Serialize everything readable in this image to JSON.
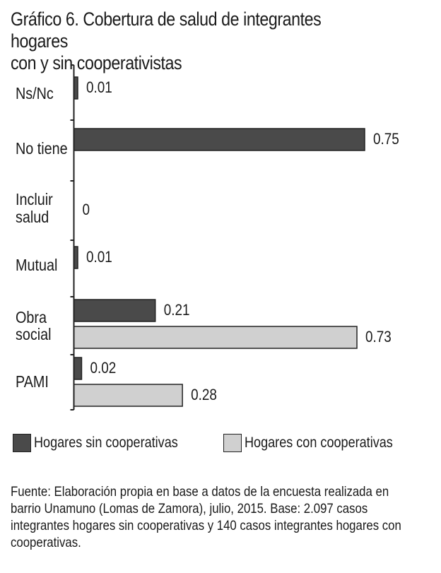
{
  "title_lines": [
    "Gráfico 6. Cobertura de salud de integrantes hogares",
    "con y sin cooperativistas"
  ],
  "chart_data": {
    "type": "bar",
    "orientation": "horizontal",
    "title": "Gráfico 6. Cobertura de salud de integrantes hogares con y sin cooperativistas",
    "categories": [
      [
        "Ns/Nc"
      ],
      [
        "No tiene"
      ],
      [
        "Incluir",
        "salud"
      ],
      [
        "Mutual"
      ],
      [
        "Obra",
        "social"
      ],
      [
        "PAMI"
      ]
    ],
    "series": [
      {
        "name": "Hogares sin cooperativas",
        "color": "#4a4a4a",
        "values": [
          0.01,
          0.75,
          0,
          0.01,
          0.21,
          0.02
        ],
        "labels": [
          "0.01",
          "0.75",
          "0",
          "0.01",
          "0.21",
          "0.02"
        ]
      },
      {
        "name": "Hogares con cooperativas",
        "color": "#d0d0d0",
        "values": [
          null,
          null,
          null,
          null,
          0.73,
          0.28
        ],
        "labels": [
          null,
          null,
          null,
          null,
          "0.73",
          "0.28"
        ]
      }
    ],
    "xlim": [
      0,
      0.8
    ],
    "grid": false,
    "legend_position": "bottom"
  },
  "note": "Fuente: Elaboración propia en base a datos de la encuesta realizada en barrio Unamuno (Lomas de Zamora), julio, 2015. Base: 2.097 casos integrantes hogares sin cooperativas y 140 casos integrantes hogares con cooperativas."
}
